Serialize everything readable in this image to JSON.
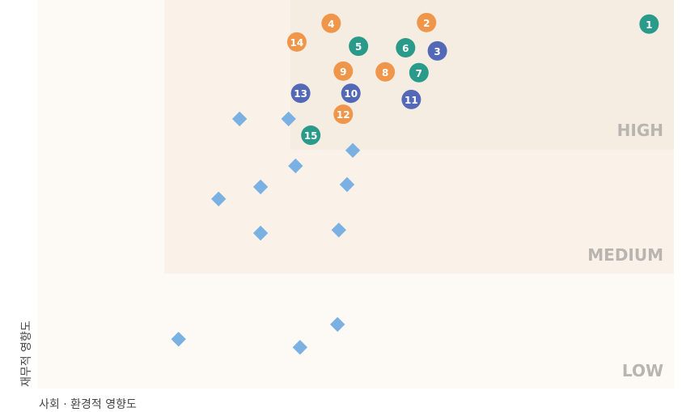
{
  "chart_data": {
    "type": "scatter",
    "xlabel": "사회 · 환경적 영향도",
    "ylabel": "재무적 영향도",
    "zones": [
      "HIGH",
      "MEDIUM",
      "LOW"
    ],
    "xlim": [
      0,
      100
    ],
    "ylim": [
      0,
      100
    ],
    "series": [
      {
        "marker": "circle",
        "color": "#f0964a",
        "labels": [
          "2",
          "4",
          "8",
          "9",
          "12",
          "14"
        ],
        "x": [
          61.1,
          46.1,
          54.6,
          48.0,
          48.0,
          40.7
        ],
        "y": [
          94.2,
          94.0,
          81.5,
          81.7,
          70.6,
          89.2
        ]
      },
      {
        "marker": "circle",
        "color": "#2a9a8a",
        "labels": [
          "1",
          "5",
          "6",
          "7",
          "15"
        ],
        "x": [
          96.1,
          50.4,
          57.8,
          59.9,
          42.9
        ],
        "y": [
          93.8,
          88.1,
          87.7,
          81.3,
          65.2
        ]
      },
      {
        "marker": "circle",
        "color": "#5468b8",
        "labels": [
          "3",
          "10",
          "11",
          "13"
        ],
        "x": [
          62.8,
          49.2,
          58.7,
          41.3
        ],
        "y": [
          86.9,
          76.0,
          74.4,
          76.0
        ]
      },
      {
        "marker": "diamond",
        "color": "#7ab1e2",
        "x": [
          31.7,
          39.4,
          49.5,
          40.5,
          35.0,
          28.4,
          48.6,
          35.0,
          47.3,
          22.1,
          41.2,
          47.1
        ],
        "y": [
          69.4,
          69.4,
          61.3,
          57.3,
          51.9,
          48.8,
          52.5,
          40.0,
          40.8,
          12.7,
          10.6,
          16.5
        ]
      }
    ]
  }
}
